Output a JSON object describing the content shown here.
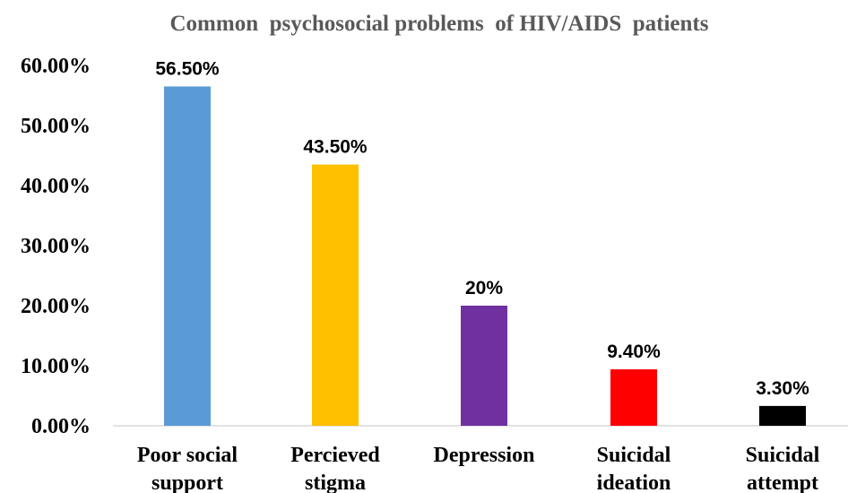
{
  "chart_data": {
    "type": "bar",
    "title": "Common  psychosocial problems  of HIV/AIDS  patients",
    "xlabel": "",
    "ylabel": "",
    "ylim": [
      0,
      60
    ],
    "yticks": [
      0,
      10,
      20,
      30,
      40,
      50,
      60
    ],
    "ytick_labels": [
      "0.00%",
      "10.00%",
      "20.00%",
      "30.00%",
      "40.00%",
      "50.00%",
      "60.00%"
    ],
    "grid": false,
    "legend": "none",
    "categories": [
      [
        "Poor social",
        "support"
      ],
      [
        "Percieved",
        "stigma"
      ],
      [
        "Depression"
      ],
      [
        "Suicidal",
        "ideation"
      ],
      [
        "Suicidal",
        "attempt"
      ]
    ],
    "values": [
      56.5,
      43.5,
      20,
      9.4,
      3.3
    ],
    "data_labels": [
      "56.50%",
      "43.50%",
      "20%",
      "9.40%",
      "3.30%"
    ],
    "colors": [
      "#5b9bd5",
      "#ffc000",
      "#7030a0",
      "#ff0000",
      "#000000"
    ]
  }
}
